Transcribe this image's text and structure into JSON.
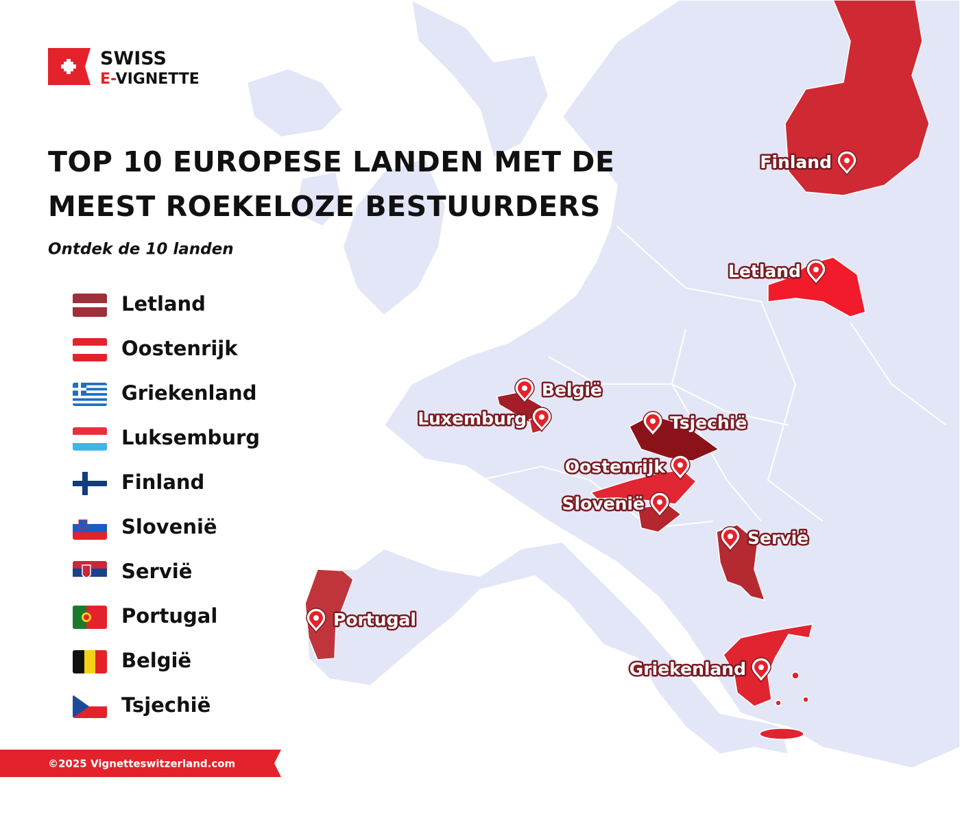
{
  "logo": {
    "line1": "SWISS",
    "line2_prefix": "E-",
    "line2": "VIGNETTE"
  },
  "title": [
    "TOP 10 EUROPESE LANDEN MET DE",
    "MEEST ROEKELOZE BESTUURDERS"
  ],
  "subtitle": "Ontdek de 10 landen",
  "legend": [
    "Letland",
    "Oostenrijk",
    "Griekenland",
    "Luksemburg",
    "Finland",
    "Slovenië",
    "Servië",
    "Portugal",
    "België",
    "Tsjechië"
  ],
  "map_labels": [
    "Finland",
    "Letland",
    "België",
    "Luxemburg",
    "Tsjechië",
    "Oostenrijk",
    "Slovenië",
    "Servië",
    "Portugal",
    "Griekenland"
  ],
  "footer": "©2025 Vignetteswitzerland.com"
}
